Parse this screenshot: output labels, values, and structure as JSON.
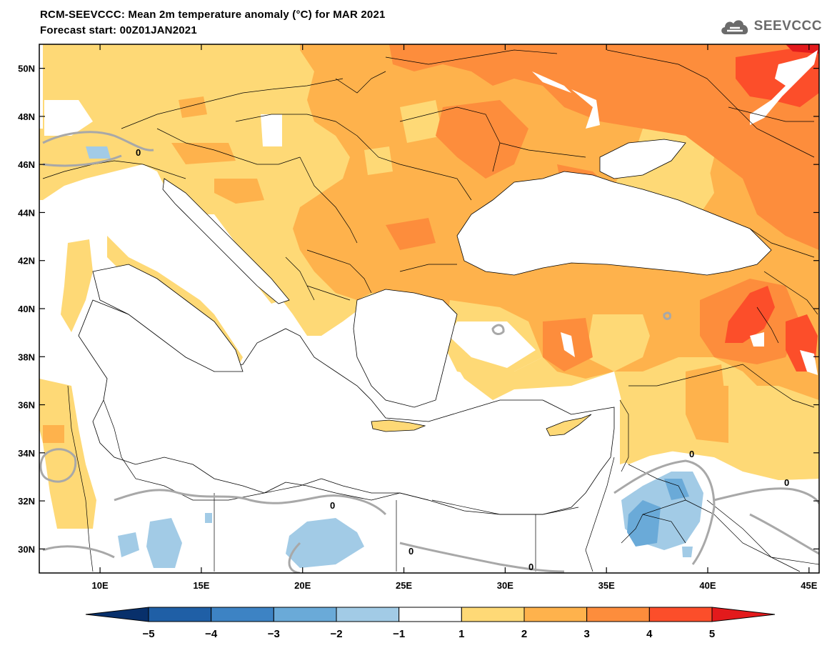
{
  "header": {
    "title": "RCM-SEEVCCC: Mean 2m temperature anomaly (°C) for MAR 2021",
    "subtitle": "Forecast start: 00Z01JAN2021",
    "logo_text": "SEEVCCC",
    "logo_icon": "cloud-icon"
  },
  "map": {
    "region": "South-East Europe and Eastern Mediterranean",
    "lon_range": [
      7,
      45.5
    ],
    "lat_range": [
      29,
      51
    ],
    "lon_ticks": [
      {
        "value": 10,
        "label": "10E"
      },
      {
        "value": 15,
        "label": "15E"
      },
      {
        "value": 20,
        "label": "20E"
      },
      {
        "value": 25,
        "label": "25E"
      },
      {
        "value": 30,
        "label": "30E"
      },
      {
        "value": 35,
        "label": "35E"
      },
      {
        "value": 40,
        "label": "40E"
      },
      {
        "value": 45,
        "label": "45E"
      }
    ],
    "lat_ticks": [
      {
        "value": 50,
        "label": "50N"
      },
      {
        "value": 48,
        "label": "48N"
      },
      {
        "value": 46,
        "label": "46N"
      },
      {
        "value": 44,
        "label": "44N"
      },
      {
        "value": 42,
        "label": "42N"
      },
      {
        "value": 40,
        "label": "40N"
      },
      {
        "value": 38,
        "label": "38N"
      },
      {
        "value": 36,
        "label": "36N"
      },
      {
        "value": 34,
        "label": "34N"
      },
      {
        "value": 32,
        "label": "32N"
      },
      {
        "value": 30,
        "label": "30N"
      }
    ],
    "contour_label": "0"
  },
  "colorbar": {
    "labels": [
      "−5",
      "−4",
      "−3",
      "−2",
      "−1",
      "1",
      "2",
      "3",
      "4",
      "5"
    ],
    "colors": [
      "#08306b",
      "#1f5fa6",
      "#3d83c4",
      "#6aaad8",
      "#a2cbe6",
      "#ffffff",
      "#fed976",
      "#feb24c",
      "#fd8d3c",
      "#fc4e2a",
      "#e31a1c"
    ]
  }
}
